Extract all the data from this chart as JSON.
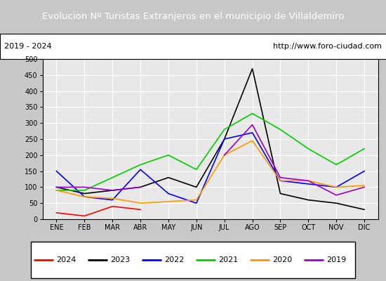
{
  "title": "Evolucion Nº Turistas Extranjeros en el municipio de Villaldemiro",
  "subtitle_left": "2019 - 2024",
  "subtitle_right": "http://www.foro-ciudad.com",
  "title_bg_color": "#4a90d9",
  "title_text_color": "#ffffff",
  "subtitle_bg_color": "#ffffff",
  "subtitle_text_color": "#000000",
  "months": [
    "ENE",
    "FEB",
    "MAR",
    "ABR",
    "MAY",
    "JUN",
    "JUL",
    "AGO",
    "SEP",
    "OCT",
    "NOV",
    "DIC"
  ],
  "ylim": [
    0,
    500
  ],
  "yticks": [
    0,
    50,
    100,
    150,
    200,
    250,
    300,
    350,
    400,
    450,
    500
  ],
  "series": {
    "2024": {
      "color": "#ff0000",
      "data": [
        20,
        10,
        40,
        30,
        null,
        null,
        null,
        null,
        null,
        null,
        null,
        null
      ]
    },
    "2023": {
      "color": "#000000",
      "data": [
        100,
        80,
        90,
        100,
        130,
        100,
        250,
        470,
        80,
        60,
        50,
        30
      ]
    },
    "2022": {
      "color": "#0000ff",
      "data": [
        150,
        70,
        60,
        155,
        80,
        50,
        250,
        270,
        120,
        110,
        100,
        150
      ]
    },
    "2021": {
      "color": "#00cc00",
      "data": [
        90,
        90,
        130,
        170,
        200,
        155,
        280,
        330,
        280,
        220,
        170,
        220
      ]
    },
    "2020": {
      "color": "#ff9900",
      "data": [
        90,
        70,
        65,
        50,
        55,
        60,
        200,
        245,
        120,
        120,
        100,
        105
      ]
    },
    "2019": {
      "color": "#9900cc",
      "data": [
        100,
        100,
        90,
        100,
        null,
        null,
        200,
        295,
        130,
        120,
        75,
        100
      ]
    }
  },
  "legend_order": [
    "2024",
    "2023",
    "2022",
    "2021",
    "2020",
    "2019"
  ],
  "plot_bg_color": "#e8e8e8",
  "fig_bg_color": "#c8c8c8",
  "grid_color": "#ffffff",
  "border_color": "#000000"
}
